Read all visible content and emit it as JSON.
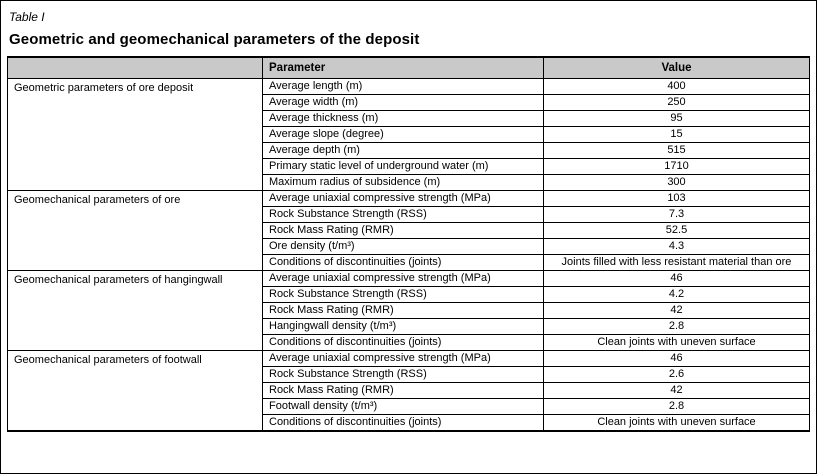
{
  "table": {
    "label": "Table I",
    "title": "Geometric and geomechanical parameters of the deposit",
    "columns": [
      "",
      "Parameter",
      "Value"
    ],
    "groups": [
      {
        "category": "Geometric parameters of ore deposit",
        "rows": [
          {
            "parameter": "Average length (m)",
            "value": "400"
          },
          {
            "parameter": "Average width (m)",
            "value": "250"
          },
          {
            "parameter": "Average thickness (m)",
            "value": "95"
          },
          {
            "parameter": "Average slope (degree)",
            "value": "15"
          },
          {
            "parameter": "Average depth (m)",
            "value": "515"
          },
          {
            "parameter": "Primary static level of underground water (m)",
            "value": "1710"
          },
          {
            "parameter": "Maximum radius of subsidence (m)",
            "value": "300"
          }
        ]
      },
      {
        "category": "Geomechanical parameters of ore",
        "rows": [
          {
            "parameter": "Average uniaxial compressive strength (MPa)",
            "value": "103"
          },
          {
            "parameter": "Rock Substance Strength (RSS)",
            "value": "7.3"
          },
          {
            "parameter": "Rock Mass Rating (RMR)",
            "value": "52.5"
          },
          {
            "parameter": "Ore density (t/m³)",
            "value": "4.3"
          },
          {
            "parameter": "Conditions of discontinuities (joints)",
            "value": "Joints filled with less resistant material than ore"
          }
        ]
      },
      {
        "category": "Geomechanical parameters of hangingwall",
        "rows": [
          {
            "parameter": "Average uniaxial compressive strength (MPa)",
            "value": "46"
          },
          {
            "parameter": "Rock Substance Strength (RSS)",
            "value": "4.2"
          },
          {
            "parameter": "Rock Mass Rating (RMR)",
            "value": "42"
          },
          {
            "parameter": "Hangingwall density (t/m³)",
            "value": "2.8"
          },
          {
            "parameter": "Conditions of discontinuities (joints)",
            "value": "Clean joints with uneven surface"
          }
        ]
      },
      {
        "category": "Geomechanical parameters of footwall",
        "rows": [
          {
            "parameter": "Average uniaxial compressive strength (MPa)",
            "value": "46"
          },
          {
            "parameter": "Rock Substance Strength (RSS)",
            "value": "2.6"
          },
          {
            "parameter": "Rock Mass Rating (RMR)",
            "value": "42"
          },
          {
            "parameter": "Footwall density (t/m³)",
            "value": "2.8"
          },
          {
            "parameter": "Conditions of discontinuities (joints)",
            "value": "Clean joints with uneven surface"
          }
        ]
      }
    ]
  },
  "colors": {
    "header_bg": "#c9c9c9",
    "border": "#000000"
  }
}
